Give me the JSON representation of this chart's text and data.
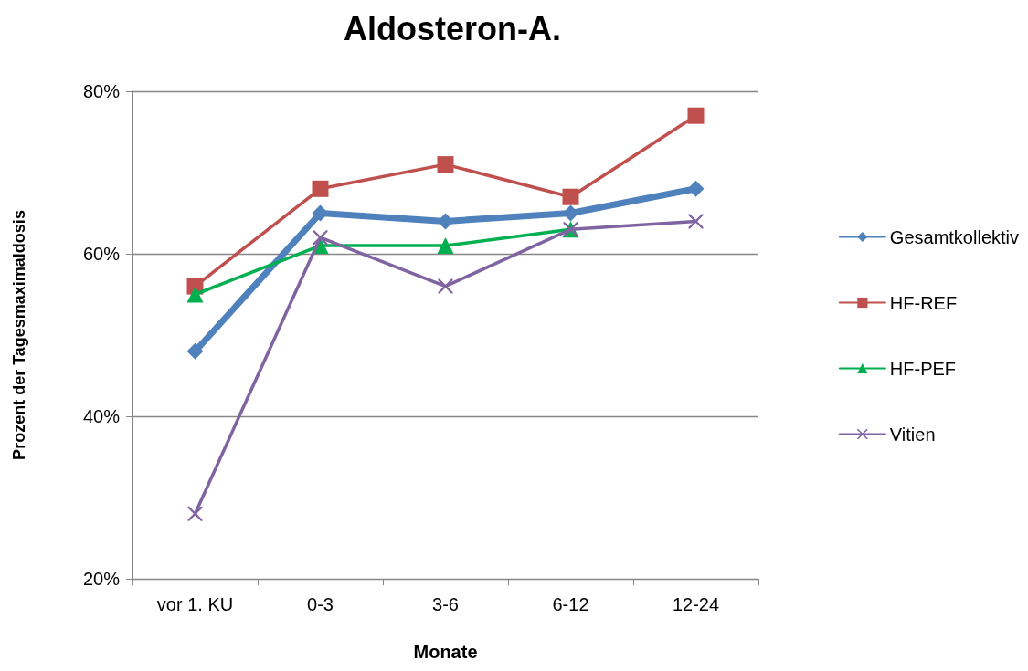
{
  "chart_data": {
    "type": "line",
    "title": "Aldosteron-A.",
    "xlabel": "Monate",
    "ylabel": "Prozent der Tagesmaximaldosis",
    "categories": [
      "vor 1. KU",
      "0-3",
      "3-6",
      "6-12",
      "12-24"
    ],
    "series": [
      {
        "name": "Gesamtkollektiv",
        "color": "#4f81bd",
        "marker": "diamond",
        "values": [
          48,
          65,
          64,
          65,
          68
        ]
      },
      {
        "name": "HF-REF",
        "color": "#c0504d",
        "marker": "square",
        "values": [
          56,
          68,
          71,
          67,
          77
        ]
      },
      {
        "name": "HF-PEF",
        "color": "#00b050",
        "marker": "triangle",
        "values": [
          55,
          61,
          61,
          63,
          null
        ]
      },
      {
        "name": "Vitien",
        "color": "#8064a2",
        "marker": "cross",
        "values": [
          28,
          62,
          56,
          63,
          64
        ]
      }
    ],
    "ylim": [
      20,
      80
    ],
    "yticks": [
      {
        "value": 20,
        "label": "20%"
      },
      {
        "value": 40,
        "label": "40%"
      },
      {
        "value": 60,
        "label": "60%"
      },
      {
        "value": 80,
        "label": "80%"
      }
    ],
    "grid": "y",
    "legend": "right",
    "line_style": "solid"
  }
}
